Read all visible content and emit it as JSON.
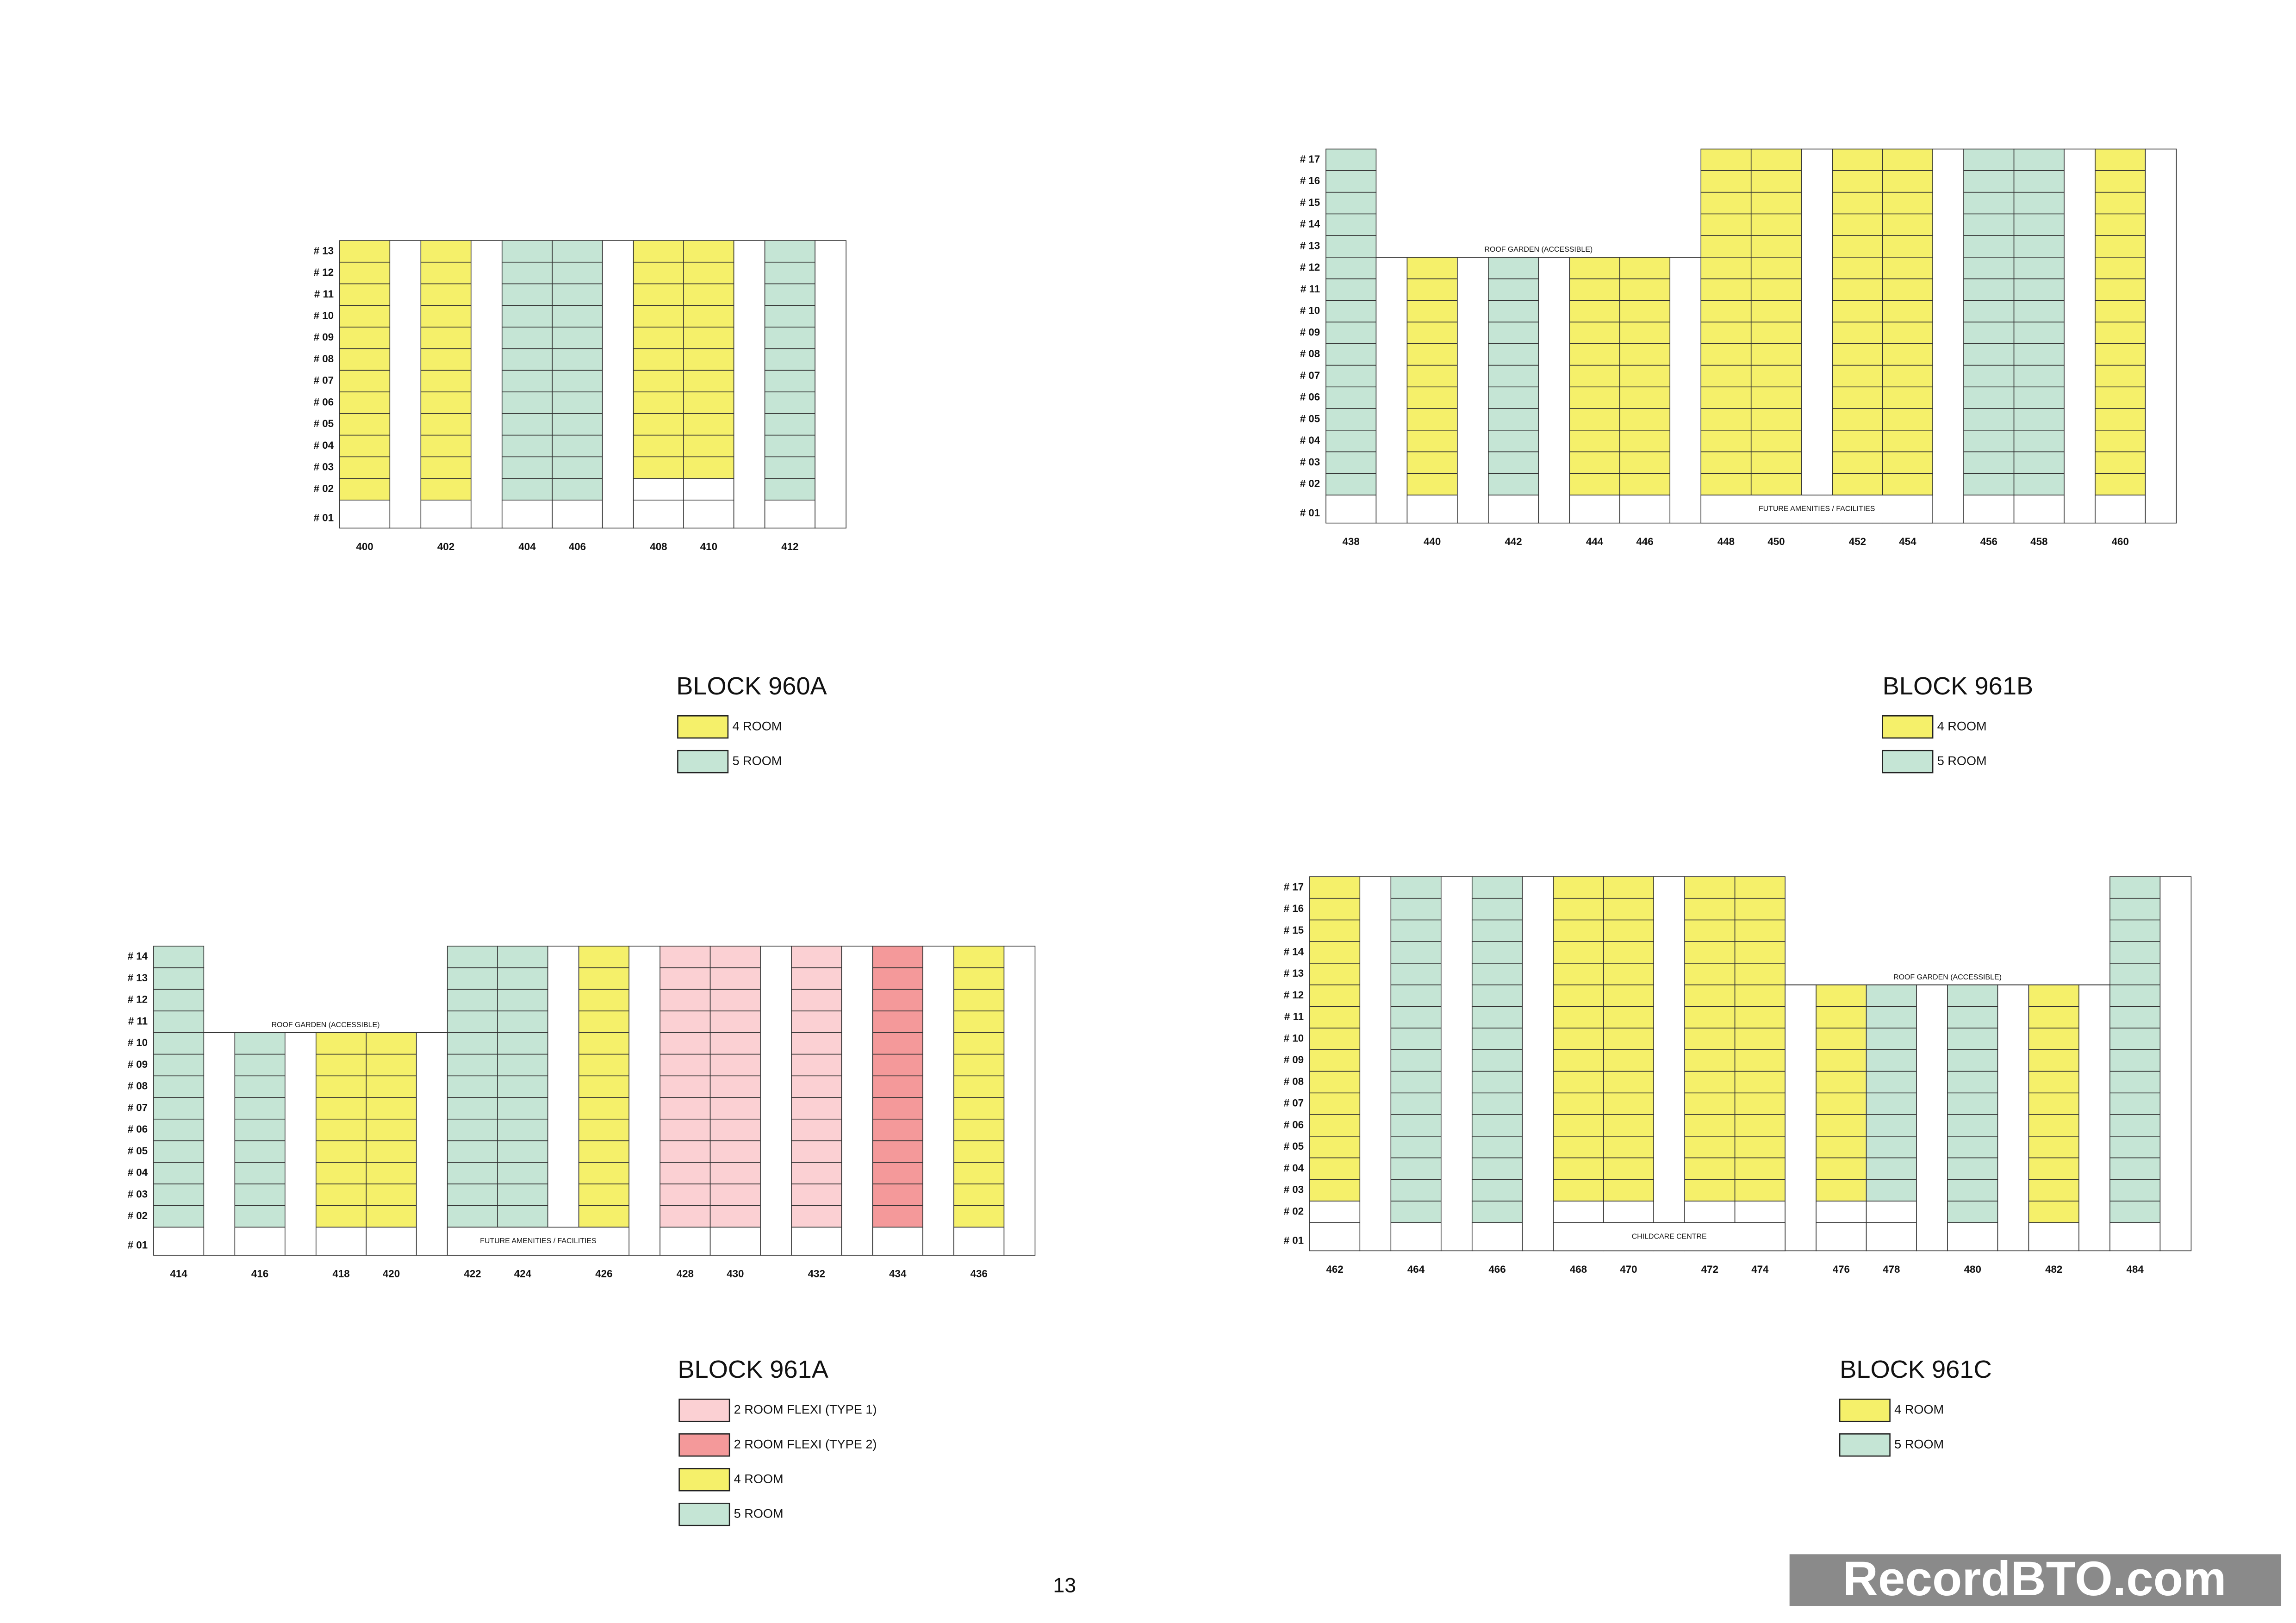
{
  "blocks": [
    {
      "title": "BLOCK 960A",
      "legend": [
        {
          "label": "4 ROOM",
          "color": "#f5f06a"
        },
        {
          "label": "5 ROOM",
          "color": "#c5e5d5"
        }
      ],
      "floors": [
        "# 13",
        "# 12",
        "# 11",
        "# 10",
        "# 09",
        "# 08",
        "# 07",
        "# 06",
        "# 05",
        "# 04",
        "# 03",
        "# 02",
        "# 01"
      ],
      "annotations": [],
      "columns": [
        {
          "unit": "400",
          "type": "4 ROOM",
          "top": "# 13",
          "bottom": "# 02"
        },
        {
          "unit": null
        },
        {
          "unit": "402",
          "type": "4 ROOM",
          "top": "# 13",
          "bottom": "# 02"
        },
        {
          "unit": null
        },
        {
          "unit": "404",
          "type": "5 ROOM",
          "top": "# 13",
          "bottom": "# 02"
        },
        {
          "unit": "406",
          "type": "5 ROOM",
          "top": "# 13",
          "bottom": "# 02"
        },
        {
          "unit": null
        },
        {
          "unit": "408",
          "type": "4 ROOM",
          "top": "# 13",
          "bottom": "# 03"
        },
        {
          "unit": "410",
          "type": "4 ROOM",
          "top": "# 13",
          "bottom": "# 03"
        },
        {
          "unit": null
        },
        {
          "unit": "412",
          "type": "5 ROOM",
          "top": "# 13",
          "bottom": "# 02"
        },
        {
          "unit": null
        }
      ]
    },
    {
      "title": "BLOCK 961B",
      "legend": [
        {
          "label": "4 ROOM",
          "color": "#f5f06a"
        },
        {
          "label": "5 ROOM",
          "color": "#c5e5d5"
        }
      ],
      "floors": [
        "# 17",
        "# 16",
        "# 15",
        "# 14",
        "# 13",
        "# 12",
        "# 11",
        "# 10",
        "# 09",
        "# 08",
        "# 07",
        "# 06",
        "# 05",
        "# 04",
        "# 03",
        "# 02",
        "# 01"
      ],
      "annotations": [
        "ROOF GARDEN (ACCESSIBLE)",
        "FUTURE AMENITIES / FACILITIES"
      ],
      "columns": [
        {
          "unit": "438",
          "type": "5 ROOM",
          "top": "# 17",
          "bottom": "# 02"
        },
        {
          "unit": null
        },
        {
          "unit": "440",
          "type": "4 ROOM",
          "top": "# 12",
          "bottom": "# 02"
        },
        {
          "unit": null
        },
        {
          "unit": "442",
          "type": "5 ROOM",
          "top": "# 12",
          "bottom": "# 02"
        },
        {
          "unit": null
        },
        {
          "unit": "444",
          "type": "4 ROOM",
          "top": "# 12",
          "bottom": "# 02"
        },
        {
          "unit": "446",
          "type": "4 ROOM",
          "top": "# 12",
          "bottom": "# 02"
        },
        {
          "unit": null
        },
        {
          "unit": "448",
          "type": "4 ROOM",
          "top": "# 17",
          "bottom": "# 02"
        },
        {
          "unit": "450",
          "type": "4 ROOM",
          "top": "# 17",
          "bottom": "# 02"
        },
        {
          "unit": null
        },
        {
          "unit": "452",
          "type": "4 ROOM",
          "top": "# 17",
          "bottom": "# 02"
        },
        {
          "unit": "454",
          "type": "4 ROOM",
          "top": "# 17",
          "bottom": "# 02"
        },
        {
          "unit": null
        },
        {
          "unit": "456",
          "type": "5 ROOM",
          "top": "# 17",
          "bottom": "# 02"
        },
        {
          "unit": "458",
          "type": "5 ROOM",
          "top": "# 17",
          "bottom": "# 02"
        },
        {
          "unit": null
        },
        {
          "unit": "460",
          "type": "4 ROOM",
          "top": "# 17",
          "bottom": "# 02"
        },
        {
          "unit": null
        }
      ]
    },
    {
      "title": "BLOCK 961A",
      "legend": [
        {
          "label": "2  ROOM FLEXI (TYPE 1)",
          "color": "#fbd0d3"
        },
        {
          "label": "2 ROOM FLEXI (TYPE 2)",
          "color": "#f4999a"
        },
        {
          "label": "4 ROOM",
          "color": "#f5f06a"
        },
        {
          "label": "5 ROOM",
          "color": "#c5e5d5"
        }
      ],
      "floors": [
        "# 14",
        "# 13",
        "# 12",
        "# 11",
        "# 10",
        "# 09",
        "# 08",
        "# 07",
        "# 06",
        "# 05",
        "# 04",
        "# 03",
        "# 02",
        "# 01"
      ],
      "annotations": [
        "ROOF GARDEN (ACCESSIBLE)",
        "FUTURE AMENITIES / FACILITIES"
      ],
      "columns": [
        {
          "unit": "414",
          "type": "5 ROOM",
          "top": "# 14",
          "bottom": "# 02"
        },
        {
          "unit": null
        },
        {
          "unit": "416",
          "type": "5 ROOM",
          "top": "# 10",
          "bottom": "# 02"
        },
        {
          "unit": null
        },
        {
          "unit": "418",
          "type": "4 ROOM",
          "top": "# 10",
          "bottom": "# 02"
        },
        {
          "unit": "420",
          "type": "4 ROOM",
          "top": "# 10",
          "bottom": "# 02"
        },
        {
          "unit": null
        },
        {
          "unit": "422",
          "type": "5 ROOM",
          "top": "# 14",
          "bottom": "# 02"
        },
        {
          "unit": "424",
          "type": "5 ROOM",
          "top": "# 14",
          "bottom": "# 02"
        },
        {
          "unit": null
        },
        {
          "unit": "426",
          "type": "4 ROOM",
          "top": "# 14",
          "bottom": "# 02"
        },
        {
          "unit": null
        },
        {
          "unit": "428",
          "type": "2  ROOM FLEXI (TYPE 1)",
          "top": "# 14",
          "bottom": "# 02"
        },
        {
          "unit": "430",
          "type": "2  ROOM FLEXI (TYPE 1)",
          "top": "# 14",
          "bottom": "# 02"
        },
        {
          "unit": null
        },
        {
          "unit": "432",
          "type": "2  ROOM FLEXI (TYPE 1)",
          "top": "# 14",
          "bottom": "# 02"
        },
        {
          "unit": null
        },
        {
          "unit": "434",
          "type": "2 ROOM FLEXI (TYPE 2)",
          "top": "# 14",
          "bottom": "# 02"
        },
        {
          "unit": null
        },
        {
          "unit": "436",
          "type": "4 ROOM",
          "top": "# 14",
          "bottom": "# 02"
        },
        {
          "unit": null
        }
      ]
    },
    {
      "title": "BLOCK 961C",
      "legend": [
        {
          "label": "4 ROOM",
          "color": "#f5f06a"
        },
        {
          "label": "5 ROOM",
          "color": "#c5e5d5"
        }
      ],
      "floors": [
        "# 17",
        "# 16",
        "# 15",
        "# 14",
        "# 13",
        "# 12",
        "# 11",
        "# 10",
        "# 09",
        "# 08",
        "# 07",
        "# 06",
        "# 05",
        "# 04",
        "# 03",
        "# 02",
        "# 01"
      ],
      "annotations": [
        "ROOF GARDEN (ACCESSIBLE)",
        "CHILDCARE CENTRE"
      ],
      "columns": [
        {
          "unit": "462",
          "type": "4 ROOM",
          "top": "# 17",
          "bottom": "# 03"
        },
        {
          "unit": null
        },
        {
          "unit": "464",
          "type": "5 ROOM",
          "top": "# 17",
          "bottom": "# 02"
        },
        {
          "unit": null
        },
        {
          "unit": "466",
          "type": "5 ROOM",
          "top": "# 17",
          "bottom": "# 02"
        },
        {
          "unit": null
        },
        {
          "unit": "468",
          "type": "4 ROOM",
          "top": "# 17",
          "bottom": "# 03"
        },
        {
          "unit": "470",
          "type": "4 ROOM",
          "top": "# 17",
          "bottom": "# 03"
        },
        {
          "unit": null
        },
        {
          "unit": "472",
          "type": "4 ROOM",
          "top": "# 17",
          "bottom": "# 03"
        },
        {
          "unit": "474",
          "type": "4 ROOM",
          "top": "# 17",
          "bottom": "# 03"
        },
        {
          "unit": null
        },
        {
          "unit": "476",
          "type": "4 ROOM",
          "top": "# 12",
          "bottom": "# 03"
        },
        {
          "unit": "478",
          "type": "5 ROOM",
          "top": "# 12",
          "bottom": "# 03"
        },
        {
          "unit": null
        },
        {
          "unit": "480",
          "type": "5 ROOM",
          "top": "# 12",
          "bottom": "# 02"
        },
        {
          "unit": null
        },
        {
          "unit": "482",
          "type": "4 ROOM",
          "top": "# 12",
          "bottom": "# 02"
        },
        {
          "unit": null
        },
        {
          "unit": "484",
          "type": "5 ROOM",
          "top": "# 17",
          "bottom": "# 02"
        },
        {
          "unit": null
        }
      ]
    }
  ],
  "page_number": "13",
  "watermark": "RecordBTO.com"
}
